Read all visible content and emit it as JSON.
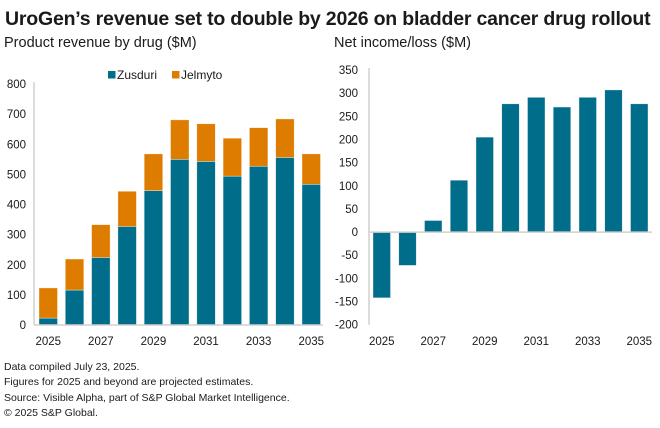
{
  "title": "UroGen’s revenue set to double by 2026 on bladder cancer drug rollout",
  "colors": {
    "zusduri": "#006E8A",
    "jelmyto": "#DE7C00",
    "axis": "#d0d0d0",
    "bar_edge": "#ffffff"
  },
  "chart_data": [
    {
      "type": "bar",
      "stacked": true,
      "title": "Product revenue by drug ($M)",
      "xlabel": "",
      "ylabel": "",
      "categories": [
        "2025",
        "2026",
        "2027",
        "2028",
        "2029",
        "2030",
        "2031",
        "2032",
        "2033",
        "2034",
        "2035"
      ],
      "x_tick_labels": [
        "2025",
        "2027",
        "2029",
        "2031",
        "2033",
        "2035"
      ],
      "series": [
        {
          "name": "Zusduri",
          "color_key": "zusduri",
          "values": [
            23,
            116,
            224,
            327,
            446,
            550,
            543,
            494,
            527,
            556,
            467
          ]
        },
        {
          "name": "Jelmyto",
          "color_key": "jelmyto",
          "values": [
            100,
            103,
            109,
            117,
            122,
            131,
            125,
            126,
            128,
            128,
            101
          ]
        }
      ],
      "ylim": [
        0,
        800
      ],
      "y_ticks": [
        0,
        100,
        200,
        300,
        400,
        500,
        600,
        700,
        800
      ],
      "legend": "top-center",
      "grid": false
    },
    {
      "type": "bar",
      "stacked": false,
      "title": "Net income/loss ($M)",
      "xlabel": "",
      "ylabel": "",
      "categories": [
        "2025",
        "2026",
        "2027",
        "2028",
        "2029",
        "2030",
        "2031",
        "2032",
        "2033",
        "2034",
        "2035"
      ],
      "x_tick_labels": [
        "2025",
        "2027",
        "2029",
        "2031",
        "2033",
        "2035"
      ],
      "series": [
        {
          "name": "Net income/loss",
          "color_key": "zusduri",
          "values": [
            -142,
            -72,
            25,
            112,
            205,
            277,
            291,
            270,
            291,
            307,
            277
          ]
        }
      ],
      "ylim": [
        -200,
        350
      ],
      "y_ticks": [
        -200,
        -150,
        -100,
        -50,
        0,
        50,
        100,
        150,
        200,
        250,
        300,
        350
      ],
      "legend": "none",
      "grid": false
    }
  ],
  "footer": [
    "Data compiled July 23, 2025.",
    "Figures for 2025 and beyond are projected estimates.",
    "Source: Visible Alpha, part of S&P Global Market Intelligence.",
    "© 2025 S&P Global."
  ]
}
